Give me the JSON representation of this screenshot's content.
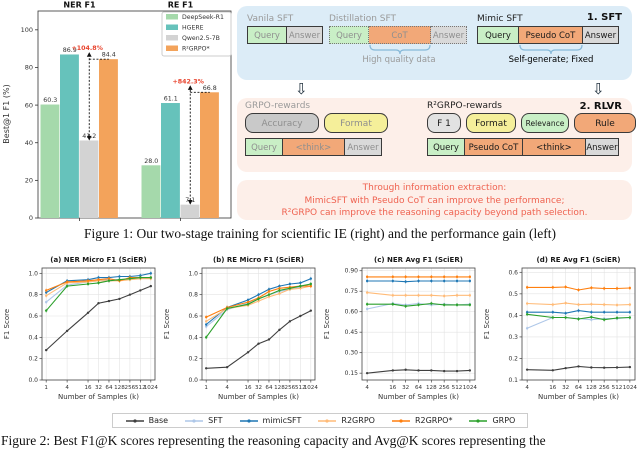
{
  "palette": {
    "Base": "#3f3f3f",
    "SFT": "#aec7e8",
    "mimicSFT": "#1f77b4",
    "R2GRPO": "#ffbb78",
    "R2GRPO*": "#ff7f0e",
    "GRPO": "#2ca02c"
  },
  "chart_data": [
    {
      "id": "fig1-bars",
      "type": "bar",
      "group_titles": [
        "NER F1",
        "RE F1"
      ],
      "ylabel": "Best@1 F1 (%)",
      "ylim": [
        0,
        110
      ],
      "yticks": [
        0,
        20,
        40,
        60,
        80,
        100
      ],
      "legend_position": "upper right",
      "series": [
        {
          "name": "DeepSeek-R1",
          "color": "#a5d9ab",
          "values": [
            60.3,
            28.0
          ]
        },
        {
          "name": "HGERE",
          "color": "#66c2bb",
          "values": [
            86.9,
            61.1
          ]
        },
        {
          "name": "Qwen2.5-7B",
          "color": "#d3d3d3",
          "values": [
            41.2,
            7.1
          ]
        },
        {
          "name": "R²GRPO*",
          "color": "#f3a35b",
          "values": [
            84.4,
            66.8
          ]
        }
      ],
      "annotations": [
        {
          "group": 0,
          "label": "+104.8%",
          "from_series": "Qwen2.5-7B",
          "to_series": "R²GRPO*"
        },
        {
          "group": 1,
          "label": "+842.3%",
          "from_series": "Qwen2.5-7B",
          "to_series": "R²GRPO*"
        }
      ]
    },
    {
      "id": "fig2a",
      "type": "line",
      "title": "(a) NER Micro F1 (SciER)",
      "xlabel": "Number of Samples (k)",
      "ylabel": "F1 Score",
      "xscale": "log2",
      "x": [
        1,
        4,
        16,
        32,
        64,
        128,
        256,
        512,
        1024
      ],
      "xticks": [
        1,
        4,
        16,
        32,
        64,
        128,
        256,
        512,
        1024
      ],
      "ylim": [
        0,
        1.05
      ],
      "yticks": [
        0.0,
        0.2,
        0.4,
        0.6,
        0.8,
        1.0
      ],
      "ydecimals": 1,
      "series": [
        {
          "name": "Base",
          "values": [
            0.28,
            0.46,
            0.63,
            0.72,
            0.74,
            0.76,
            0.8,
            0.84,
            0.88
          ]
        },
        {
          "name": "SFT",
          "values": [
            0.73,
            0.89,
            0.92,
            0.93,
            0.94,
            0.94,
            0.95,
            0.95,
            0.96
          ]
        },
        {
          "name": "mimicSFT",
          "values": [
            0.82,
            0.93,
            0.94,
            0.96,
            0.96,
            0.97,
            0.97,
            0.98,
            1.0
          ]
        },
        {
          "name": "R2GRPO",
          "values": [
            0.79,
            0.91,
            0.92,
            0.93,
            0.93,
            0.93,
            0.94,
            0.95,
            0.95
          ]
        },
        {
          "name": "R2GRPO*",
          "values": [
            0.84,
            0.92,
            0.93,
            0.94,
            0.95,
            0.93,
            0.96,
            0.96,
            0.96
          ]
        },
        {
          "name": "GRPO",
          "values": [
            0.65,
            0.88,
            0.9,
            0.91,
            0.93,
            0.94,
            0.95,
            0.96,
            0.96
          ]
        }
      ]
    },
    {
      "id": "fig2b",
      "type": "line",
      "title": "(b) RE Micro F1 (SciER)",
      "xlabel": "Number of Samples (k)",
      "ylabel": "F1 Score",
      "xscale": "log2",
      "x": [
        1,
        4,
        16,
        32,
        64,
        128,
        256,
        512,
        1024
      ],
      "xticks": [
        1,
        4,
        16,
        32,
        64,
        128,
        256,
        512,
        1024
      ],
      "ylim": [
        0,
        1.05
      ],
      "yticks": [
        0.0,
        0.2,
        0.4,
        0.6,
        0.8,
        1.0
      ],
      "ydecimals": 1,
      "series": [
        {
          "name": "Base",
          "values": [
            0.11,
            0.12,
            0.26,
            0.34,
            0.38,
            0.47,
            0.55,
            0.6,
            0.65
          ]
        },
        {
          "name": "SFT",
          "values": [
            0.5,
            0.66,
            0.72,
            0.76,
            0.8,
            0.83,
            0.85,
            0.87,
            0.9
          ]
        },
        {
          "name": "mimicSFT",
          "values": [
            0.52,
            0.68,
            0.75,
            0.8,
            0.85,
            0.88,
            0.9,
            0.91,
            0.95
          ]
        },
        {
          "name": "R2GRPO",
          "values": [
            0.55,
            0.67,
            0.7,
            0.74,
            0.78,
            0.81,
            0.85,
            0.86,
            0.88
          ]
        },
        {
          "name": "R2GRPO*",
          "values": [
            0.59,
            0.68,
            0.73,
            0.77,
            0.83,
            0.86,
            0.87,
            0.88,
            0.88
          ]
        },
        {
          "name": "GRPO",
          "values": [
            0.4,
            0.67,
            0.71,
            0.76,
            0.8,
            0.84,
            0.86,
            0.88,
            0.9
          ]
        }
      ]
    },
    {
      "id": "fig2c",
      "type": "line",
      "title": "(c) NER Avg F1 (SciER)",
      "xlabel": "Number of Samples (k)",
      "ylabel": "F1 Score",
      "xscale": "log2",
      "x": [
        4,
        16,
        32,
        64,
        128,
        256,
        512,
        1024
      ],
      "xticks": [
        4,
        16,
        32,
        64,
        128,
        256,
        512,
        1024
      ],
      "ylim": [
        0.1,
        0.92
      ],
      "yticks": [
        0.15,
        0.3,
        0.45,
        0.6,
        0.75,
        0.9
      ],
      "ydecimals": 2,
      "series": [
        {
          "name": "Base",
          "values": [
            0.15,
            0.17,
            0.175,
            0.17,
            0.17,
            0.165,
            0.165,
            0.17
          ]
        },
        {
          "name": "SFT",
          "values": [
            0.62,
            0.66,
            0.65,
            0.66,
            0.65,
            0.655,
            0.65,
            0.655
          ]
        },
        {
          "name": "mimicSFT",
          "values": [
            0.825,
            0.825,
            0.82,
            0.825,
            0.825,
            0.825,
            0.825,
            0.825
          ]
        },
        {
          "name": "R2GRPO",
          "values": [
            0.74,
            0.72,
            0.72,
            0.72,
            0.72,
            0.715,
            0.72,
            0.72
          ]
        },
        {
          "name": "R2GRPO*",
          "values": [
            0.855,
            0.855,
            0.855,
            0.855,
            0.855,
            0.855,
            0.855,
            0.855
          ]
        },
        {
          "name": "GRPO",
          "values": [
            0.655,
            0.655,
            0.64,
            0.65,
            0.66,
            0.65,
            0.65,
            0.65
          ]
        }
      ]
    },
    {
      "id": "fig2d",
      "type": "line",
      "title": "(d) RE Avg F1 (SciER)",
      "xlabel": "Number of Samples (k)",
      "ylabel": "F1 Score",
      "xscale": "log2",
      "x": [
        4,
        16,
        32,
        64,
        128,
        256,
        512,
        1024
      ],
      "xticks": [
        4,
        16,
        32,
        64,
        128,
        256,
        512,
        1024
      ],
      "ylim": [
        0.1,
        0.62
      ],
      "yticks": [
        0.1,
        0.2,
        0.3,
        0.4,
        0.5,
        0.6
      ],
      "ydecimals": 1,
      "series": [
        {
          "name": "Base",
          "values": [
            0.148,
            0.145,
            0.155,
            0.163,
            0.158,
            0.157,
            0.158,
            0.16
          ]
        },
        {
          "name": "SFT",
          "values": [
            0.34,
            0.39,
            0.39,
            0.385,
            0.38,
            0.385,
            0.385,
            0.39
          ]
        },
        {
          "name": "mimicSFT",
          "values": [
            0.415,
            0.415,
            0.41,
            0.422,
            0.415,
            0.415,
            0.415,
            0.415
          ]
        },
        {
          "name": "R2GRPO",
          "values": [
            0.455,
            0.45,
            0.457,
            0.45,
            0.452,
            0.45,
            0.448,
            0.45
          ]
        },
        {
          "name": "R2GRPO*",
          "values": [
            0.53,
            0.53,
            0.532,
            0.518,
            0.528,
            0.525,
            0.525,
            0.527
          ]
        },
        {
          "name": "GRPO",
          "values": [
            0.405,
            0.39,
            0.39,
            0.383,
            0.392,
            0.38,
            0.388,
            0.39
          ]
        }
      ]
    }
  ],
  "figure1": {
    "caption": "Figure 1: Our two-stage training for scientific IE (right) and the performance gain (left)",
    "diagram": {
      "stage1_label": "1. SFT",
      "stage2_label": "2. RLVR",
      "vanila": {
        "title": "Vanila SFT",
        "boxes": [
          "Query",
          "Answer"
        ]
      },
      "distillation": {
        "title": "Distillation SFT",
        "boxes": [
          "Query",
          "CoT",
          "Answer"
        ],
        "note": "High quality data"
      },
      "mimic": {
        "title": "Mimic SFT",
        "boxes": [
          "Query",
          "Pseudo CoT",
          "Answer"
        ],
        "note": "Self-generate; Fixed"
      },
      "grpo": {
        "title": "GRPO-rewards",
        "rewards": [
          "Accuracy",
          "Format"
        ],
        "sequence": [
          "Query",
          "<think>",
          "Answer"
        ]
      },
      "r2grpo": {
        "title": "R²GRPO-rewards",
        "rewards": [
          "F 1",
          "Format",
          "Relevance",
          "Rule"
        ],
        "sequence": [
          "Query",
          "Pseudo CoT",
          "<think>",
          "Answer"
        ]
      },
      "summary": [
        "Through information extraction:",
        "MimicSFT with Pseudo CoT can improve the performance;",
        "R²GRPO can improve the reasoning capacity beyond path selection."
      ]
    }
  },
  "figure2": {
    "caption": "Figure 2: Best F1@K scores representing the reasoning capacity and Avg@K scores representing the",
    "legend": [
      "Base",
      "SFT",
      "mimicSFT",
      "R2GRPO",
      "R2GRPO*",
      "GRPO"
    ]
  }
}
